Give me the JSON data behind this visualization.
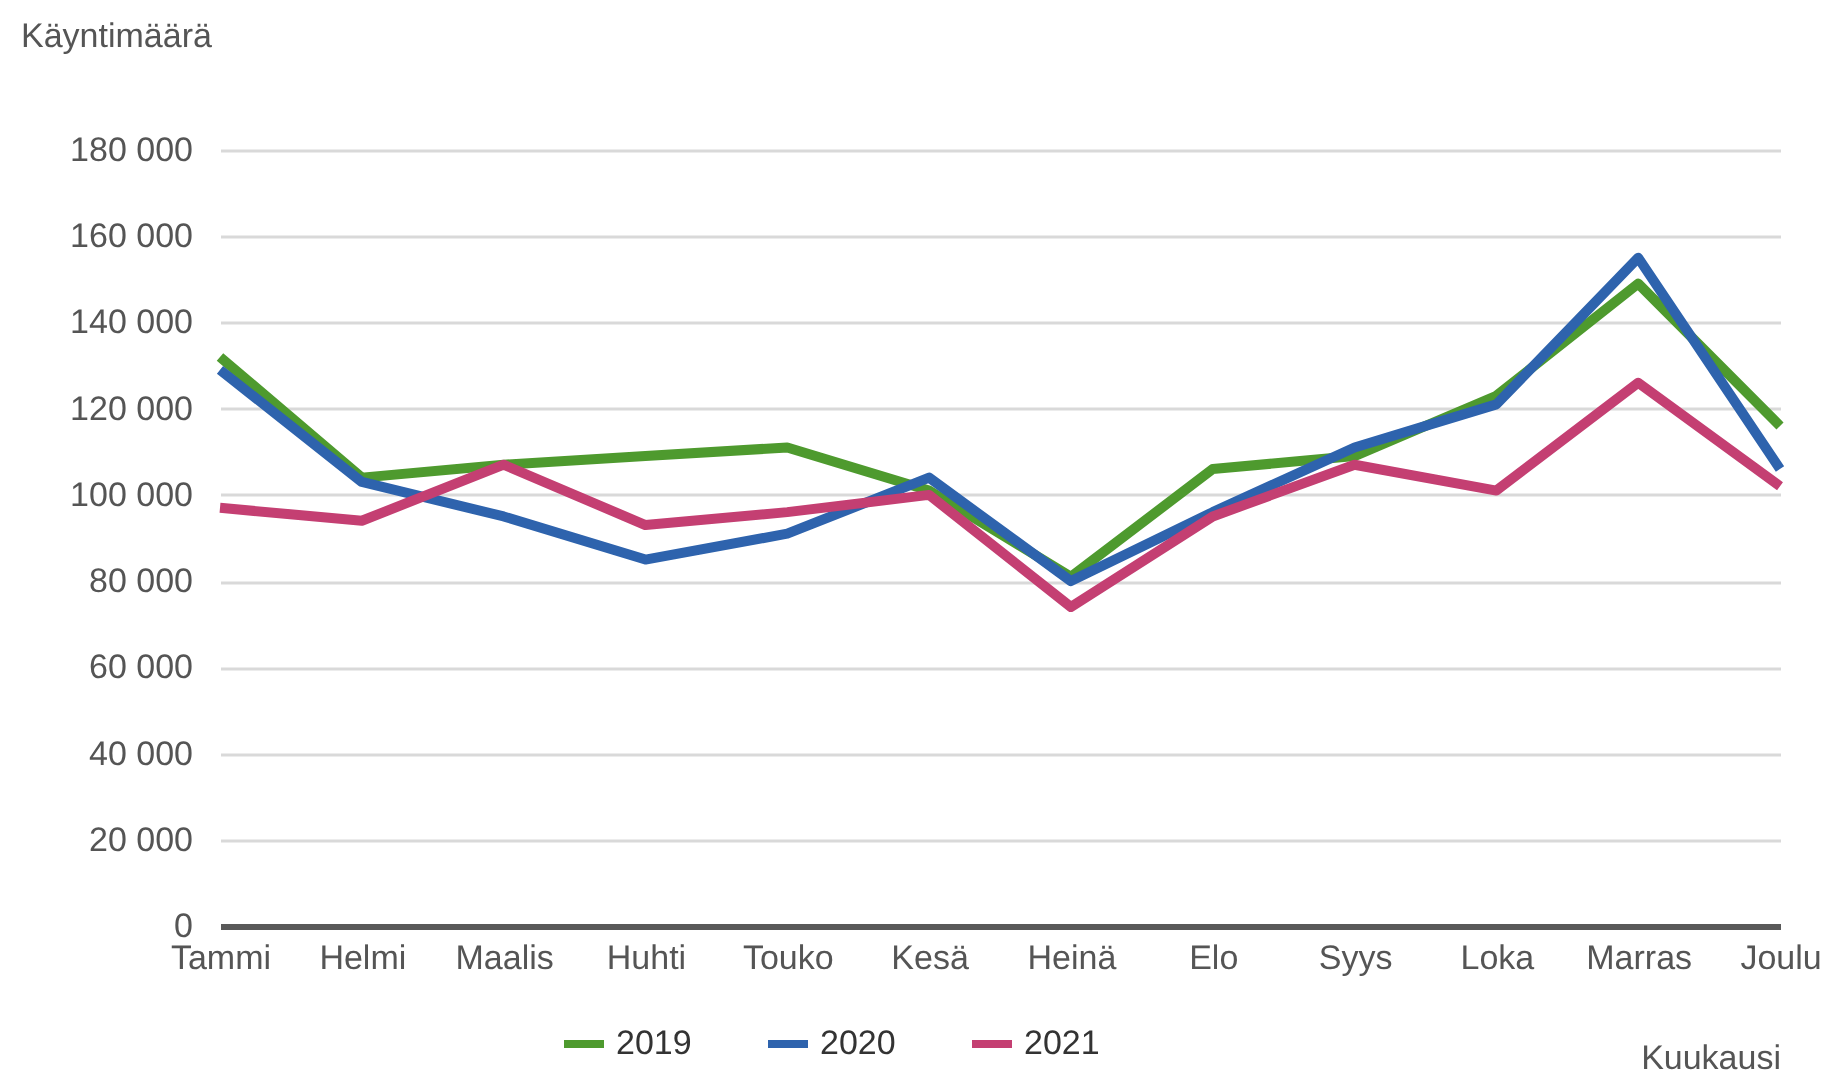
{
  "chart_data": {
    "type": "line",
    "xlabel": "Kuukausi",
    "ylabel": "Käyntimäärä",
    "categories": [
      "Tammi",
      "Helmi",
      "Maalis",
      "Huhti",
      "Touko",
      "Kesä",
      "Heinä",
      "Elo",
      "Syys",
      "Loka",
      "Marras",
      "Joulu"
    ],
    "series": [
      {
        "name": "2019",
        "color": "#4e9a2e",
        "values": [
          132000,
          104000,
          107000,
          109000,
          111000,
          101000,
          81000,
          106000,
          109000,
          123000,
          149000,
          116000
        ]
      },
      {
        "name": "2020",
        "color": "#2e63ad",
        "values": [
          129000,
          103000,
          95000,
          85000,
          91000,
          104000,
          80000,
          96000,
          111000,
          121000,
          155000,
          106000
        ]
      },
      {
        "name": "2021",
        "color": "#c43f72",
        "values": [
          97000,
          94000,
          107000,
          93000,
          96000,
          100000,
          74000,
          95000,
          107000,
          101000,
          126000,
          102000
        ]
      }
    ],
    "ylim": [
      0,
      180000
    ],
    "yticks": [
      0,
      {
        "value": 20000,
        "label": "20 000"
      },
      {
        "value": 40000,
        "label": "40 000"
      },
      {
        "value": 60000,
        "label": "60 000"
      },
      {
        "value": 80000,
        "label": "80 000"
      },
      {
        "value": 100000,
        "label": "100 000"
      },
      {
        "value": 120000,
        "label": "120 000"
      },
      {
        "value": 140000,
        "label": "140 000"
      },
      {
        "value": 160000,
        "label": "160 000"
      },
      {
        "value": 180000,
        "label": "180 000"
      }
    ],
    "grid": "y",
    "legend": "bottom",
    "marker": "none",
    "line_style": "solid"
  }
}
